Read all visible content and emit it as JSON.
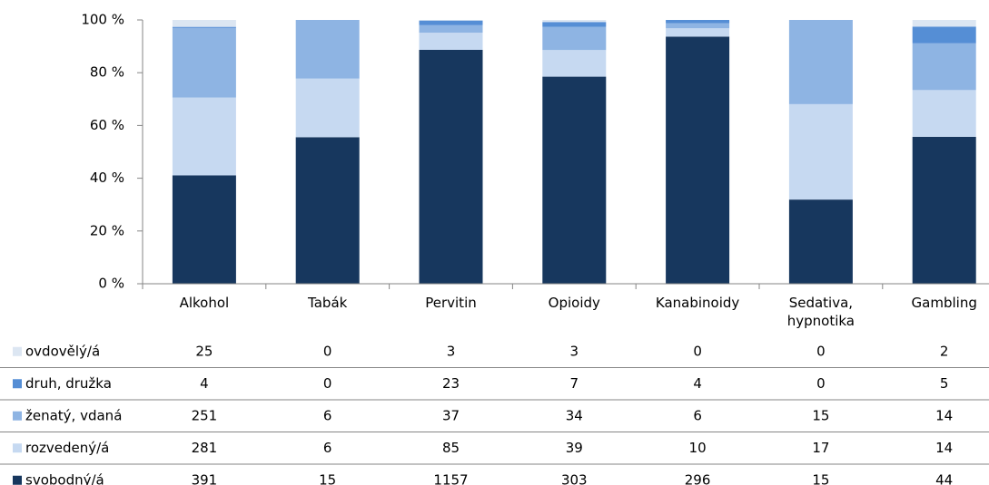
{
  "chart_data": {
    "type": "bar",
    "stacking": "percent",
    "categories": [
      "Alkohol",
      "Tabák",
      "Pervitin",
      "Opioidy",
      "Kanabinoidy",
      "Sedativa, hypnotika",
      "Gambling"
    ],
    "series": [
      {
        "name": "ovdovělý/á",
        "color": "#dce6f2",
        "values": [
          25,
          0,
          3,
          3,
          0,
          0,
          2
        ]
      },
      {
        "name": "druh, družka",
        "color": "#558ed5",
        "values": [
          4,
          0,
          23,
          7,
          4,
          0,
          5
        ]
      },
      {
        "name": "ženatý, vdaná",
        "color": "#8eb4e3",
        "values": [
          251,
          6,
          37,
          34,
          6,
          15,
          14
        ]
      },
      {
        "name": "rozvedený/á",
        "color": "#c6d9f1",
        "values": [
          281,
          6,
          85,
          39,
          10,
          17,
          14
        ]
      },
      {
        "name": "svobodný/á",
        "color": "#17375e",
        "values": [
          391,
          15,
          1157,
          303,
          296,
          15,
          44
        ]
      }
    ],
    "ylim": [
      0,
      100
    ],
    "yticks": [
      {
        "value": 0,
        "label": "0 %"
      },
      {
        "value": 20,
        "label": "20 %"
      },
      {
        "value": 40,
        "label": "40 %"
      },
      {
        "value": 60,
        "label": "60 %"
      },
      {
        "value": 80,
        "label": "80 %"
      },
      {
        "value": 100,
        "label": "100 %"
      }
    ],
    "grid": false,
    "data_table": true
  }
}
